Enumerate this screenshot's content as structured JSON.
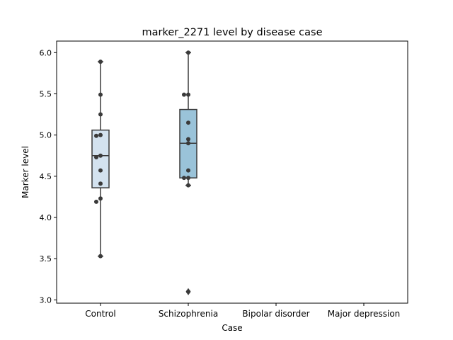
{
  "chart_data": {
    "type": "boxplot",
    "title": "marker_2271 level by disease case",
    "xlabel": "Case",
    "ylabel": "Marker level",
    "ylim": [
      2.96,
      6.14
    ],
    "yticks": [
      3.0,
      3.5,
      4.0,
      4.5,
      5.0,
      5.5,
      6.0
    ],
    "ytick_labels": [
      "3.0",
      "3.5",
      "4.0",
      "4.5",
      "5.0",
      "5.5",
      "6.0"
    ],
    "categories": [
      "Control",
      "Schizophrenia",
      "Bipolar disorder",
      "Major depression"
    ],
    "grid": false,
    "colors": {
      "box_fills": [
        "#d3e2ef",
        "#9ac3d9",
        "#5a9fcb",
        "#2a6fae"
      ],
      "line": "#3a3a3a",
      "point": "#3a3a3a"
    },
    "boxes": [
      {
        "category": "Control",
        "whisker_low": 3.53,
        "q1": 4.36,
        "median": 4.75,
        "q3": 5.06,
        "whisker_high": 5.89,
        "outliers": [],
        "points": [
          5.89,
          5.49,
          5.25,
          5.0,
          4.99,
          4.75,
          4.73,
          4.57,
          4.41,
          4.23,
          4.19,
          3.53
        ]
      },
      {
        "category": "Schizophrenia",
        "whisker_low": 4.39,
        "q1": 4.48,
        "median": 4.9,
        "q3": 5.31,
        "whisker_high": 6.0,
        "outliers": [
          3.1
        ],
        "points": [
          6.0,
          5.49,
          5.49,
          5.15,
          4.95,
          4.9,
          4.57,
          4.48,
          4.48,
          4.39,
          3.1
        ]
      },
      {
        "category": "Bipolar disorder",
        "points": []
      },
      {
        "category": "Major depression",
        "points": []
      }
    ]
  }
}
